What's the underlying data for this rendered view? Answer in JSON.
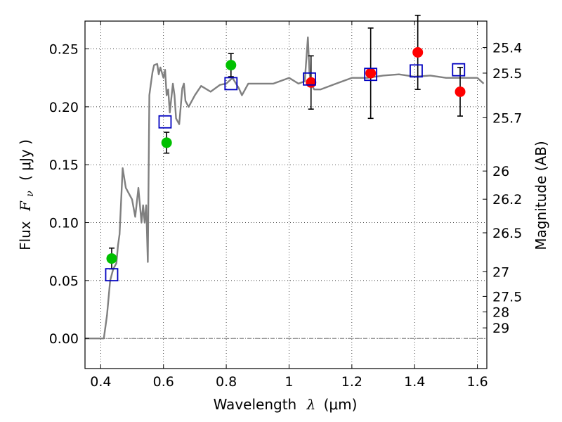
{
  "chart_data": {
    "type": "scatter",
    "xlabel": "Wavelength",
    "xlabel_symbol": "λ",
    "xlabel_unit": "(μm)",
    "ylabel": "Flux",
    "ylabel_symbol": "F",
    "ylabel_subscript": "ν",
    "ylabel_unit": "( μJy )",
    "y2label": "Magnitude (AB)",
    "xlim": [
      0.35,
      1.63
    ],
    "ylim": [
      -0.026,
      0.274
    ],
    "grid": true,
    "x_ticks": [
      0.4,
      0.6,
      0.8,
      1.0,
      1.2,
      1.4,
      1.6
    ],
    "x_tick_labels": [
      "0.4",
      "0.6",
      "0.8",
      "1",
      "1.2",
      "1.4",
      "1.6"
    ],
    "y_ticks": [
      0.0,
      0.05,
      0.1,
      0.15,
      0.2,
      0.25
    ],
    "y_tick_labels": [
      "0.00",
      "0.05",
      "0.10",
      "0.15",
      "0.20",
      "0.25"
    ],
    "magnitude_ticks": [
      "25.4",
      "25.5",
      "25.7",
      "26",
      "26.2",
      "26.5",
      "27",
      "27.5",
      "28",
      "29"
    ],
    "colors": {
      "model": "#808080",
      "observed_green": "#00c000",
      "observed_red": "#ff0000",
      "model_band": "#0000c0",
      "errorbar": "#000000"
    },
    "series": [
      {
        "kind": "line",
        "x": [
          0.35,
          0.41,
          0.42,
          0.43,
          0.44,
          0.45,
          0.455,
          0.46,
          0.47,
          0.48,
          0.49,
          0.5,
          0.51,
          0.52,
          0.53,
          0.535,
          0.54,
          0.545,
          0.55,
          0.555,
          0.56,
          0.565,
          0.57,
          0.58,
          0.585,
          0.59,
          0.6,
          0.605,
          0.61,
          0.615,
          0.62,
          0.63,
          0.635,
          0.64,
          0.65,
          0.66,
          0.665,
          0.67,
          0.68,
          0.7,
          0.72,
          0.75,
          0.78,
          0.8,
          0.82,
          0.84,
          0.85,
          0.87,
          0.9,
          0.95,
          1.0,
          1.03,
          1.05,
          1.06,
          1.065,
          1.07,
          1.08,
          1.1,
          1.15,
          1.2,
          1.25,
          1.3,
          1.35,
          1.4,
          1.45,
          1.5,
          1.55,
          1.6,
          1.62
        ],
        "y": [
          0.0,
          0.0,
          0.02,
          0.05,
          0.06,
          0.065,
          0.08,
          0.09,
          0.147,
          0.13,
          0.125,
          0.12,
          0.105,
          0.13,
          0.1,
          0.115,
          0.1,
          0.115,
          0.066,
          0.21,
          0.22,
          0.23,
          0.236,
          0.237,
          0.228,
          0.234,
          0.225,
          0.232,
          0.21,
          0.215,
          0.195,
          0.22,
          0.21,
          0.19,
          0.185,
          0.216,
          0.22,
          0.205,
          0.2,
          0.21,
          0.218,
          0.213,
          0.219,
          0.22,
          0.225,
          0.216,
          0.21,
          0.22,
          0.22,
          0.22,
          0.225,
          0.22,
          0.222,
          0.26,
          0.23,
          0.22,
          0.215,
          0.215,
          0.22,
          0.225,
          0.225,
          0.227,
          0.228,
          0.226,
          0.227,
          0.225,
          0.225,
          0.225,
          0.22
        ]
      },
      {
        "kind": "points",
        "marker": "circle",
        "color_key": "observed_green",
        "x": [
          0.435,
          0.61,
          0.815
        ],
        "y": [
          0.069,
          0.169,
          0.236
        ],
        "yerr": [
          0.009,
          0.009,
          0.01
        ]
      },
      {
        "kind": "points",
        "marker": "circle",
        "color_key": "observed_red",
        "x": [
          1.07,
          1.26,
          1.41,
          1.545
        ],
        "y": [
          0.221,
          0.229,
          0.247,
          0.213
        ],
        "yerr": [
          0.023,
          0.039,
          0.032,
          0.021
        ]
      },
      {
        "kind": "points",
        "marker": "square",
        "color_key": "model_band",
        "x": [
          0.435,
          0.605,
          0.815,
          1.065,
          1.26,
          1.405,
          1.54
        ],
        "y": [
          0.055,
          0.187,
          0.22,
          0.224,
          0.228,
          0.231,
          0.232
        ]
      }
    ]
  }
}
